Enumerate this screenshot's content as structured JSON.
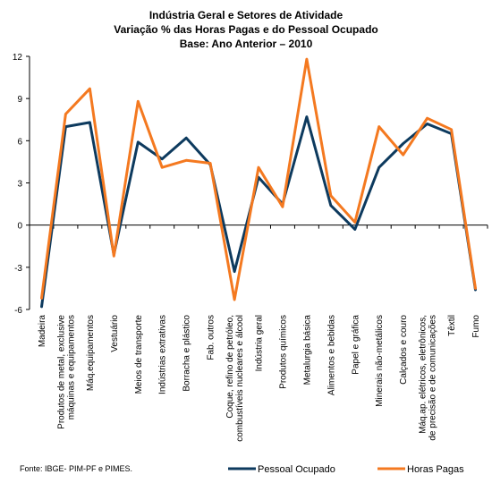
{
  "chart_data": {
    "type": "line",
    "title_lines": [
      "Indústria Geral e Setores de Atividade",
      "Variação % das Horas Pagas e do Pessoal Ocupado",
      "Base: Ano Anterior – 2010"
    ],
    "categories": [
      [
        "Madeira"
      ],
      [
        "Produtos de metal, exclusive",
        "máquinas e equipamentos"
      ],
      [
        "Máq.equipamentos"
      ],
      [
        "Vestuário"
      ],
      [
        "Meios de transporte"
      ],
      [
        "Indústrias extrativas"
      ],
      [
        "Borracha e plástico"
      ],
      [
        "Fab. outros"
      ],
      [
        "Coque, refino de petróleo,",
        "combustíveis nucleares e álcool"
      ],
      [
        "Indústria geral"
      ],
      [
        "Produtos químicos"
      ],
      [
        "Metalurgia básica"
      ],
      [
        "Alimentos e bebidas"
      ],
      [
        "Papel e gráfica"
      ],
      [
        "Minerais não-metálicos"
      ],
      [
        "Calçados e couro"
      ],
      [
        "Máq.ap. elétricos, eletrônicos,",
        "de precisão e de comunicações"
      ],
      [
        "Têxtil"
      ],
      [
        "Fumo"
      ]
    ],
    "series": [
      {
        "name": "Pessoal Ocupado",
        "color": "#0d3a5e",
        "values": [
          -5.8,
          7.0,
          7.3,
          -2.1,
          5.9,
          4.7,
          6.2,
          4.3,
          -3.3,
          3.4,
          1.5,
          7.7,
          1.4,
          -0.3,
          4.1,
          5.8,
          7.2,
          6.5,
          -4.6
        ]
      },
      {
        "name": "Horas Pagas",
        "color": "#f47920",
        "values": [
          -5.2,
          7.9,
          9.7,
          -2.2,
          8.8,
          4.1,
          4.6,
          4.4,
          -5.3,
          4.1,
          1.3,
          11.8,
          2.1,
          0.2,
          7.0,
          5.0,
          7.6,
          6.8,
          -4.5
        ]
      }
    ],
    "ylim": [
      -6,
      12
    ],
    "yticks": [
      -6,
      -3,
      0,
      3,
      6,
      9,
      12
    ],
    "grid": false,
    "legend_position": "bottom-right"
  },
  "footer": {
    "source": "Fonte: IBGE- PIM-PF e PIMES."
  }
}
